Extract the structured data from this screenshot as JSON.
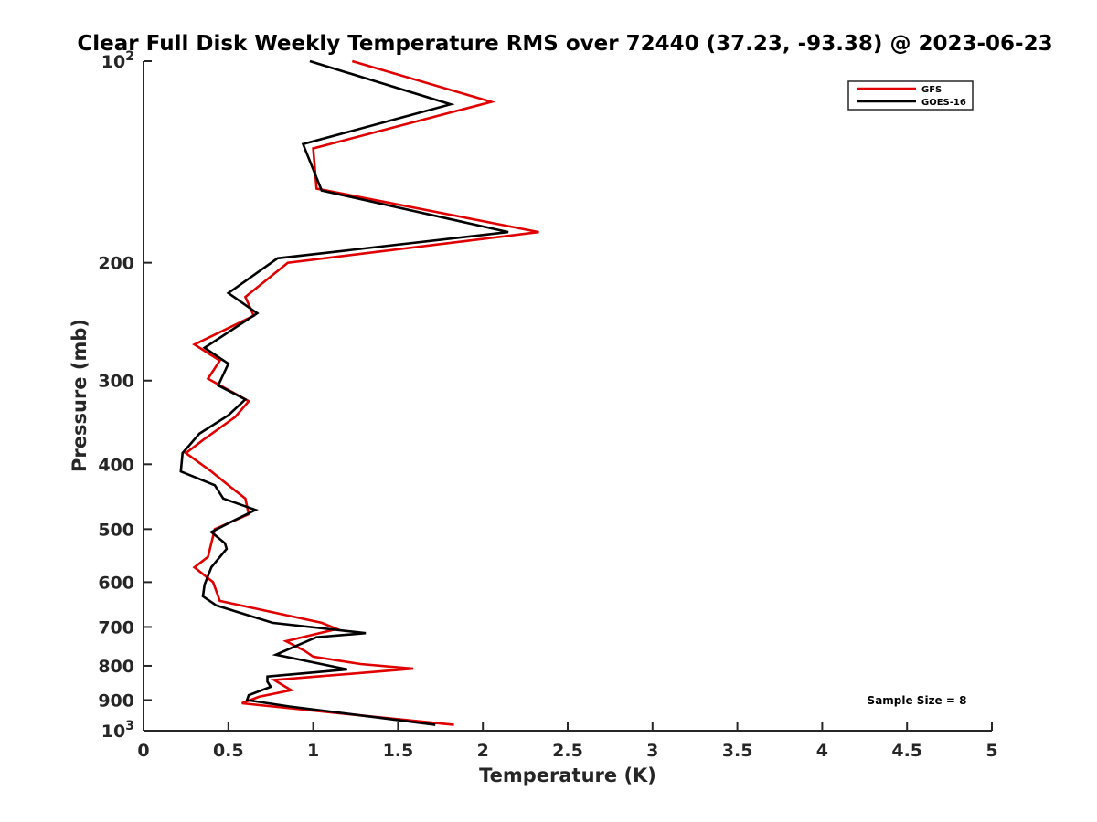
{
  "chart_data": {
    "type": "line",
    "title": "Clear Full Disk Weekly Temperature RMS over 72440 (37.23, -93.38) @ 2023-06-23",
    "xlabel": "Temperature (K)",
    "ylabel": "Pressure (mb)",
    "xlim": [
      0,
      5
    ],
    "ylim": [
      100,
      1000
    ],
    "y_scale": "log",
    "y_reversed": true,
    "grid": false,
    "legend_position": "top-right",
    "x_ticks": [
      0,
      0.5,
      1,
      1.5,
      2,
      2.5,
      3,
      3.5,
      4,
      4.5,
      5
    ],
    "x_tick_labels": [
      "0",
      "0.5",
      "1",
      "1.5",
      "2",
      "2.5",
      "3",
      "3.5",
      "4",
      "4.5",
      "5"
    ],
    "y_ticks": [
      {
        "value": 100,
        "label": "10",
        "exp": "2"
      },
      {
        "value": 200,
        "label": "200",
        "exp": ""
      },
      {
        "value": 300,
        "label": "300",
        "exp": ""
      },
      {
        "value": 400,
        "label": "400",
        "exp": ""
      },
      {
        "value": 500,
        "label": "500",
        "exp": ""
      },
      {
        "value": 600,
        "label": "600",
        "exp": ""
      },
      {
        "value": 700,
        "label": "700",
        "exp": ""
      },
      {
        "value": 800,
        "label": "800",
        "exp": ""
      },
      {
        "value": 900,
        "label": "900",
        "exp": ""
      },
      {
        "value": 1000,
        "label": "10",
        "exp": "3"
      }
    ],
    "annotation": "Sample Size = 8",
    "series": [
      {
        "name": "GFS",
        "color": "#e00000",
        "points": [
          [
            1.23,
            100
          ],
          [
            2.05,
            115
          ],
          [
            1.0,
            135
          ],
          [
            1.02,
            155
          ],
          [
            2.33,
            180
          ],
          [
            0.85,
            200
          ],
          [
            0.6,
            225
          ],
          [
            0.65,
            240
          ],
          [
            0.3,
            265
          ],
          [
            0.45,
            280
          ],
          [
            0.38,
            298
          ],
          [
            0.62,
            322
          ],
          [
            0.54,
            340
          ],
          [
            0.35,
            368
          ],
          [
            0.25,
            385
          ],
          [
            0.4,
            410
          ],
          [
            0.5,
            430
          ],
          [
            0.6,
            450
          ],
          [
            0.62,
            475
          ],
          [
            0.42,
            500
          ],
          [
            0.38,
            550
          ],
          [
            0.3,
            570
          ],
          [
            0.41,
            600
          ],
          [
            0.45,
            640
          ],
          [
            1.05,
            690
          ],
          [
            1.14,
            705
          ],
          [
            0.84,
            735
          ],
          [
            0.95,
            760
          ],
          [
            1.0,
            775
          ],
          [
            1.28,
            795
          ],
          [
            1.59,
            808
          ],
          [
            0.77,
            840
          ],
          [
            0.87,
            870
          ],
          [
            0.68,
            890
          ],
          [
            0.58,
            910
          ],
          [
            1.3,
            950
          ],
          [
            1.83,
            980
          ]
        ]
      },
      {
        "name": "GOES-16",
        "color": "#000000",
        "points": [
          [
            0.98,
            100
          ],
          [
            1.81,
            116
          ],
          [
            0.94,
            133
          ],
          [
            1.05,
            156
          ],
          [
            2.15,
            180
          ],
          [
            0.79,
            197
          ],
          [
            0.5,
            222
          ],
          [
            0.67,
            238
          ],
          [
            0.36,
            268
          ],
          [
            0.5,
            283
          ],
          [
            0.44,
            305
          ],
          [
            0.6,
            320
          ],
          [
            0.5,
            338
          ],
          [
            0.33,
            360
          ],
          [
            0.23,
            385
          ],
          [
            0.22,
            410
          ],
          [
            0.42,
            430
          ],
          [
            0.47,
            450
          ],
          [
            0.66,
            468
          ],
          [
            0.5,
            490
          ],
          [
            0.4,
            505
          ],
          [
            0.48,
            525
          ],
          [
            0.49,
            535
          ],
          [
            0.4,
            570
          ],
          [
            0.36,
            605
          ],
          [
            0.35,
            630
          ],
          [
            0.43,
            650
          ],
          [
            0.76,
            690
          ],
          [
            1.31,
            715
          ],
          [
            1.02,
            725
          ],
          [
            0.91,
            745
          ],
          [
            0.78,
            770
          ],
          [
            1.2,
            810
          ],
          [
            0.73,
            830
          ],
          [
            0.73,
            845
          ],
          [
            0.75,
            860
          ],
          [
            0.62,
            885
          ],
          [
            0.61,
            900
          ],
          [
            0.86,
            920
          ],
          [
            1.72,
            980
          ]
        ]
      }
    ]
  }
}
